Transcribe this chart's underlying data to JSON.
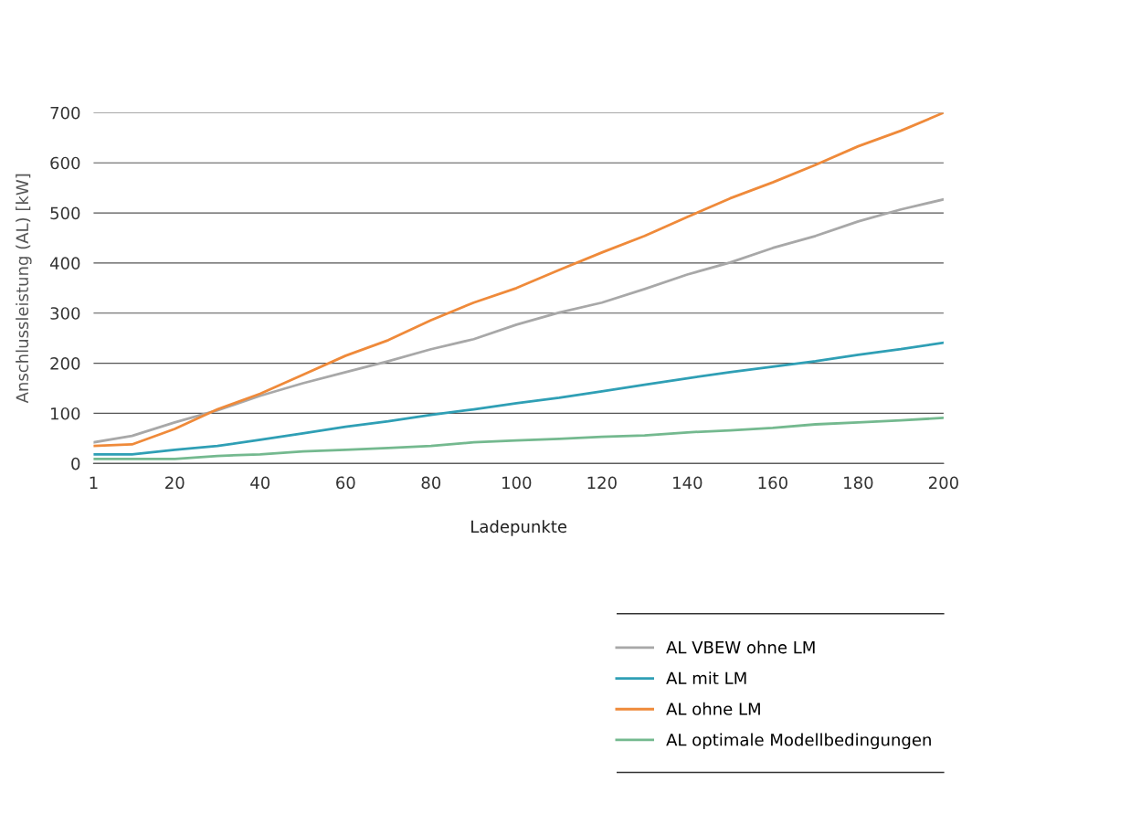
{
  "chart_data": {
    "type": "line",
    "xlabel": "Ladepunkte",
    "ylabel": "Anschlussleistung (AL) [kW]",
    "x": [
      1,
      10,
      20,
      30,
      40,
      50,
      60,
      70,
      80,
      90,
      100,
      110,
      120,
      130,
      140,
      150,
      160,
      170,
      180,
      190,
      200
    ],
    "xlim": [
      1,
      200
    ],
    "xticks": [
      1,
      20,
      40,
      60,
      80,
      100,
      120,
      140,
      160,
      180,
      200
    ],
    "ylim": [
      0,
      700
    ],
    "yticks": [
      0,
      100,
      200,
      300,
      400,
      500,
      600,
      700
    ],
    "grid": "y",
    "legend": "bottom right",
    "marker": "none",
    "line_style": "solid",
    "series": [
      {
        "name": "AL VBEW ohne LM",
        "color": "#a8a8a8",
        "values": [
          42,
          55,
          82,
          106,
          135,
          160,
          182,
          204,
          228,
          248,
          277,
          301,
          321,
          348,
          377,
          401,
          430,
          454,
          483,
          507,
          527
        ]
      },
      {
        "name": "AL mit LM",
        "color": "#2f9fb5",
        "values": [
          18,
          18,
          27,
          35,
          47,
          60,
          73,
          84,
          97,
          108,
          120,
          131,
          144,
          157,
          170,
          182,
          193,
          204,
          217,
          228,
          241
        ]
      },
      {
        "name": "AL ohne LM",
        "color": "#ef8a3a",
        "values": [
          35,
          38,
          69,
          108,
          139,
          177,
          215,
          246,
          286,
          321,
          350,
          386,
          421,
          454,
          492,
          529,
          561,
          596,
          633,
          664,
          700
        ]
      },
      {
        "name": "AL optimale Modellbedingungen",
        "color": "#74b98f",
        "values": [
          9,
          9,
          9,
          15,
          18,
          24,
          27,
          31,
          35,
          42,
          46,
          49,
          53,
          56,
          62,
          66,
          71,
          78,
          82,
          86,
          91
        ]
      }
    ]
  }
}
